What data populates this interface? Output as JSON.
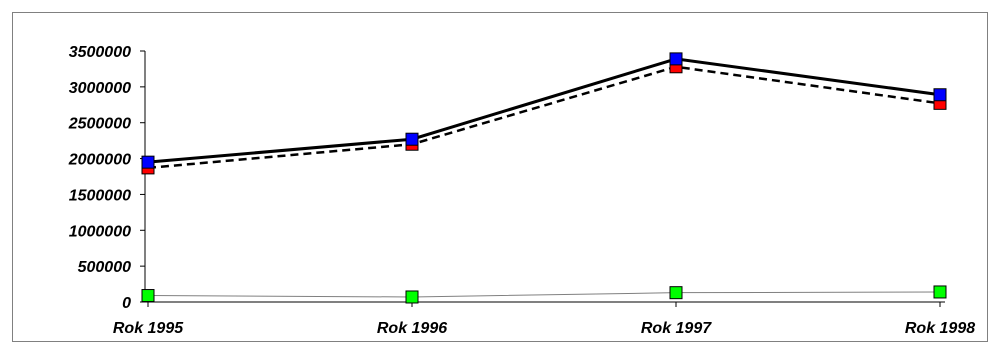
{
  "chart_data": {
    "type": "line",
    "categories": [
      "Rok 1995",
      "Rok 1996",
      "Rok 1997",
      "Rok 1998"
    ],
    "yticks": [
      "0",
      "500000",
      "1000000",
      "1500000",
      "2000000",
      "2500000",
      "3000000",
      "3500000"
    ],
    "ylim": [
      0,
      3500000
    ],
    "grid": false,
    "legend": "none",
    "series": [
      {
        "values": [
          1950000,
          2270000,
          3390000,
          2890000
        ],
        "color": "#000000",
        "line_style": "solid",
        "marker_color": "#0000ff"
      },
      {
        "values": [
          1870000,
          2200000,
          3280000,
          2770000
        ],
        "color": "#000000",
        "line_style": "dashed",
        "marker_color": "#ff0000"
      },
      {
        "values": [
          90000,
          70000,
          130000,
          140000
        ],
        "color": "#808080",
        "line_style": "thin",
        "marker_color": "#00ff00"
      }
    ]
  }
}
